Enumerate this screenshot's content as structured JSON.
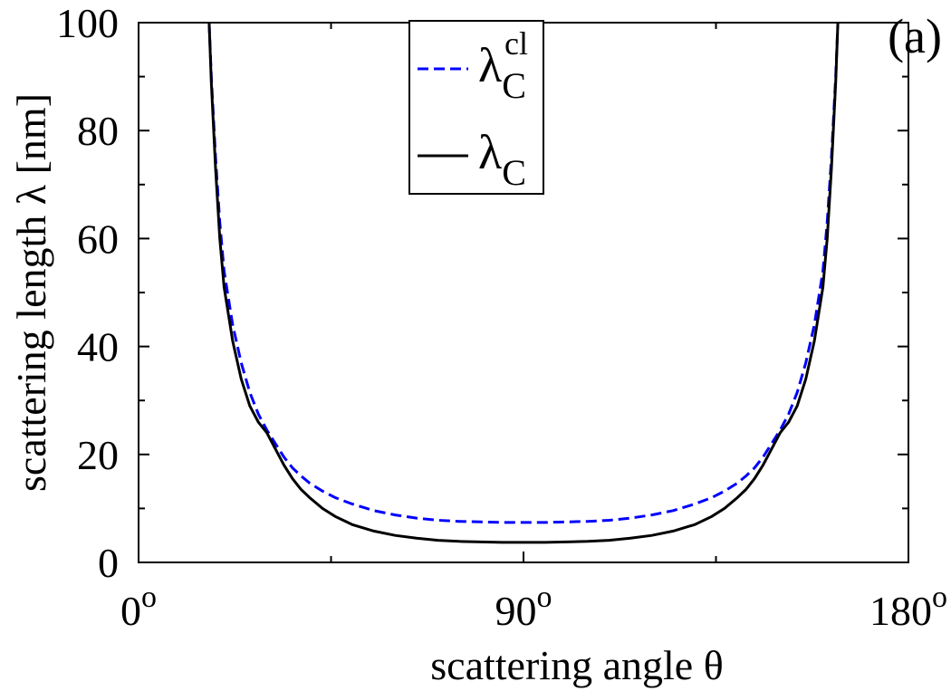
{
  "chart_data": {
    "type": "line",
    "panel_label": "(a)",
    "xlabel": "scattering angle θ",
    "ylabel": "scattering length λ [nm]",
    "xlim": [
      0,
      180
    ],
    "ylim": [
      0,
      100
    ],
    "x_ticks": [
      {
        "value": 0,
        "base": "0",
        "sup": "o"
      },
      {
        "value": 90,
        "base": "90",
        "sup": "o"
      },
      {
        "value": 180,
        "base": "180",
        "sup": "o"
      }
    ],
    "x_minor_ticks": [
      45,
      135
    ],
    "y_ticks": [
      {
        "value": 0,
        "label": "0"
      },
      {
        "value": 20,
        "label": "20"
      },
      {
        "value": 40,
        "label": "40"
      },
      {
        "value": 60,
        "label": "60"
      },
      {
        "value": 80,
        "label": "80"
      },
      {
        "value": 100,
        "label": "100"
      }
    ],
    "y_minor_ticks": [
      10,
      30,
      50,
      70,
      90
    ],
    "grid": false,
    "legend": {
      "placement": "top-center",
      "entries": [
        {
          "series": 0,
          "base": "λ",
          "sub": "C",
          "sup": "cl"
        },
        {
          "series": 1,
          "base": "λ",
          "sub": "C",
          "sup": ""
        }
      ]
    },
    "series": [
      {
        "color": "#0000ff",
        "dash": "dashed",
        "x": [
          16.5,
          17,
          18,
          19,
          20,
          22,
          24,
          26,
          28,
          30,
          32,
          34,
          36,
          38,
          40,
          43,
          46,
          50,
          55,
          60,
          65,
          70,
          75,
          80,
          85,
          90,
          95,
          100,
          105,
          110,
          115,
          120,
          125,
          130,
          134,
          137,
          140,
          142,
          144,
          146,
          148,
          150,
          152,
          154,
          156,
          158,
          160,
          161,
          162,
          163,
          163.5
        ],
        "y": [
          100,
          90,
          75,
          63,
          54,
          44,
          37,
          31.5,
          27.5,
          24.5,
          22,
          19.5,
          17.5,
          16,
          14.7,
          13.2,
          12,
          10.8,
          9.6,
          8.8,
          8.2,
          7.8,
          7.6,
          7.5,
          7.4,
          7.4,
          7.4,
          7.5,
          7.6,
          7.8,
          8.2,
          8.8,
          9.6,
          10.8,
          12,
          13.2,
          14.7,
          16,
          17.5,
          19.5,
          22,
          24.5,
          27.5,
          31.5,
          37,
          44,
          54,
          63,
          75,
          90,
          100
        ]
      },
      {
        "color": "#000000",
        "dash": "solid",
        "x": [
          16.5,
          17,
          18,
          19,
          20,
          22,
          24,
          26,
          28,
          30,
          32,
          34,
          36,
          38,
          40,
          43,
          46,
          50,
          55,
          60,
          65,
          70,
          75,
          80,
          85,
          90,
          95,
          100,
          105,
          110,
          115,
          120,
          125,
          130,
          134,
          137,
          140,
          142,
          144,
          146,
          148,
          150,
          152,
          154,
          156,
          158,
          160,
          161,
          162,
          163,
          163.5
        ],
        "y": [
          100,
          89,
          73,
          60,
          51,
          41,
          34,
          29,
          26,
          24,
          21,
          18,
          15.5,
          13.5,
          12,
          10,
          8.5,
          7,
          5.8,
          5,
          4.5,
          4.1,
          3.9,
          3.8,
          3.7,
          3.7,
          3.7,
          3.8,
          3.9,
          4.1,
          4.5,
          5,
          5.8,
          7,
          8.5,
          10,
          12,
          13.5,
          15.5,
          18,
          21,
          24,
          26,
          29,
          34,
          41,
          51,
          60,
          73,
          89,
          100
        ]
      }
    ]
  }
}
